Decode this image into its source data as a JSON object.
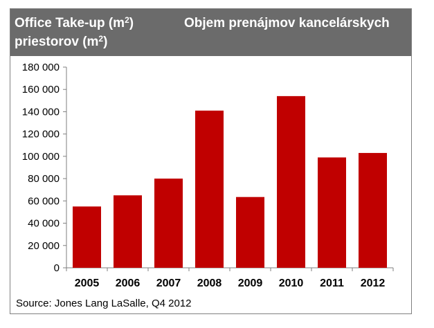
{
  "header": {
    "title_left_line1": "Office Take-up (m",
    "title_left_line1_sup": "2",
    "title_left_line1_end": ")",
    "title_left_line2": "priestorov (m",
    "title_left_line2_sup": "2",
    "title_left_line2_end": ")",
    "title_right": "Objem prenájmov kancelárskych"
  },
  "colors": {
    "header_bg": "#6b6b6b",
    "bar": "#c00000"
  },
  "chart_data": {
    "type": "bar",
    "categories": [
      "2005",
      "2006",
      "2007",
      "2008",
      "2009",
      "2010",
      "2011",
      "2012"
    ],
    "values": [
      55000,
      65000,
      80000,
      141000,
      63500,
      154000,
      99000,
      103000
    ],
    "ylim": [
      0,
      180000
    ],
    "yticks": [
      0,
      20000,
      40000,
      60000,
      80000,
      100000,
      120000,
      140000,
      160000,
      180000
    ],
    "ytick_labels": [
      "0",
      "20 000",
      "40 000",
      "60 000",
      "80 000",
      "100 000",
      "120 000",
      "140 000",
      "160 000",
      "180 000"
    ],
    "grid": false,
    "title": "",
    "xlabel": "",
    "ylabel": ""
  },
  "source": "Source: Jones Lang LaSalle, Q4 2012"
}
